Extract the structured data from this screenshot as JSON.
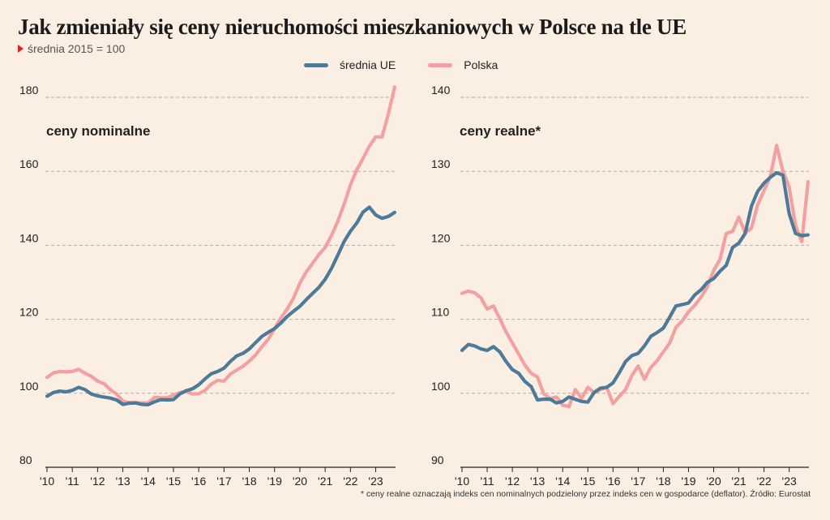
{
  "title": "Jak zmieniały się ceny nieruchomości mieszkaniowych w Polsce na tle UE",
  "subtitle": "średnia 2015 = 100",
  "legend": [
    {
      "label": "średnia UE",
      "color": "#4d7a99"
    },
    {
      "label": "Polska",
      "color": "#f4a0a0"
    }
  ],
  "footnote": "* ceny realne oznaczają indeks cen nominalnych podzielony przez indeks cen w gospodarce (deflator). Źródło: Eurostat",
  "chart_data": [
    {
      "type": "line",
      "panel_title": "ceny nominalne",
      "x_tick_labels": [
        "'10",
        "'11",
        "'12",
        "'13",
        "'14",
        "'15",
        "'16",
        "'17",
        "'18",
        "'19",
        "'20",
        "'21",
        "'22",
        "'23"
      ],
      "ylim": [
        80,
        185
      ],
      "y_ticks": [
        80,
        100,
        120,
        140,
        160,
        180
      ],
      "grid": true,
      "x_quarters": [
        "2010Q1",
        "2010Q2",
        "2010Q3",
        "2010Q4",
        "2011Q1",
        "2011Q2",
        "2011Q3",
        "2011Q4",
        "2012Q1",
        "2012Q2",
        "2012Q3",
        "2012Q4",
        "2013Q1",
        "2013Q2",
        "2013Q3",
        "2013Q4",
        "2014Q1",
        "2014Q2",
        "2014Q3",
        "2014Q4",
        "2015Q1",
        "2015Q2",
        "2015Q3",
        "2015Q4",
        "2016Q1",
        "2016Q2",
        "2016Q3",
        "2016Q4",
        "2017Q1",
        "2017Q2",
        "2017Q3",
        "2017Q4",
        "2018Q1",
        "2018Q2",
        "2018Q3",
        "2018Q4",
        "2019Q1",
        "2019Q2",
        "2019Q3",
        "2019Q4",
        "2020Q1",
        "2020Q2",
        "2020Q3",
        "2020Q4",
        "2021Q1",
        "2021Q2",
        "2021Q3",
        "2021Q4",
        "2022Q1",
        "2022Q2",
        "2022Q3",
        "2022Q4",
        "2023Q1",
        "2023Q2",
        "2023Q3",
        "2023Q4"
      ],
      "series": [
        {
          "name": "średnia UE",
          "color": "#4d7a99",
          "values": [
            99.2,
            100.2,
            100.6,
            100.4,
            100.8,
            101.6,
            101.0,
            99.8,
            99.3,
            99.0,
            98.7,
            98.2,
            97.0,
            97.3,
            97.4,
            97.0,
            96.9,
            97.7,
            98.3,
            98.2,
            98.3,
            99.8,
            100.7,
            101.2,
            102.3,
            103.9,
            105.3,
            105.9,
            106.8,
            108.6,
            110.1,
            110.8,
            112.0,
            113.7,
            115.4,
            116.5,
            117.5,
            119.0,
            120.8,
            122.2,
            123.5,
            125.3,
            127.0,
            128.6,
            130.8,
            133.7,
            137.3,
            141.0,
            143.8,
            146.0,
            149.0,
            150.3,
            148.2,
            147.3,
            147.8,
            148.9
          ]
        },
        {
          "name": "Polska",
          "color": "#f4a0a0",
          "values": [
            104.3,
            105.5,
            105.9,
            105.8,
            105.9,
            106.5,
            105.4,
            104.6,
            103.3,
            102.6,
            101.0,
            99.8,
            97.9,
            97.5,
            97.5,
            97.4,
            97.4,
            98.9,
            98.8,
            98.8,
            99.5,
            100.2,
            100.5,
            99.8,
            99.9,
            100.8,
            102.5,
            103.5,
            103.3,
            105.2,
            106.3,
            107.3,
            108.7,
            110.4,
            112.6,
            114.6,
            117.5,
            120.4,
            122.8,
            125.8,
            129.8,
            132.8,
            135.1,
            137.5,
            139.4,
            142.6,
            146.5,
            151.1,
            156.3,
            160.4,
            163.5,
            166.8,
            169.3,
            169.3,
            175.5,
            182.8
          ]
        }
      ]
    },
    {
      "type": "line",
      "panel_title": "ceny realne*",
      "x_tick_labels": [
        "'10",
        "'11",
        "'12",
        "'13",
        "'14",
        "'15",
        "'16",
        "'17",
        "'18",
        "'19",
        "'20",
        "'21",
        "'22",
        "'23"
      ],
      "ylim": [
        90,
        141
      ],
      "y_ticks": [
        90,
        100,
        110,
        120,
        130,
        140
      ],
      "grid": true,
      "x_quarters": [
        "2010Q1",
        "2010Q2",
        "2010Q3",
        "2010Q4",
        "2011Q1",
        "2011Q2",
        "2011Q3",
        "2011Q4",
        "2012Q1",
        "2012Q2",
        "2012Q3",
        "2012Q4",
        "2013Q1",
        "2013Q2",
        "2013Q3",
        "2013Q4",
        "2014Q1",
        "2014Q2",
        "2014Q3",
        "2014Q4",
        "2015Q1",
        "2015Q2",
        "2015Q3",
        "2015Q4",
        "2016Q1",
        "2016Q2",
        "2016Q3",
        "2016Q4",
        "2017Q1",
        "2017Q2",
        "2017Q3",
        "2017Q4",
        "2018Q1",
        "2018Q2",
        "2018Q3",
        "2018Q4",
        "2019Q1",
        "2019Q2",
        "2019Q3",
        "2019Q4",
        "2020Q1",
        "2020Q2",
        "2020Q3",
        "2020Q4",
        "2021Q1",
        "2021Q2",
        "2021Q3",
        "2021Q4",
        "2022Q1",
        "2022Q2",
        "2022Q3",
        "2022Q4",
        "2023Q1",
        "2023Q2",
        "2023Q3",
        "2023Q4"
      ],
      "series": [
        {
          "name": "średnia UE",
          "color": "#4d7a99",
          "values": [
            105.8,
            106.6,
            106.4,
            106.0,
            105.8,
            106.3,
            105.6,
            104.3,
            103.2,
            102.7,
            101.6,
            100.9,
            99.1,
            99.2,
            99.2,
            98.7,
            98.9,
            99.5,
            99.2,
            98.9,
            98.8,
            100.1,
            100.7,
            100.8,
            101.4,
            102.8,
            104.3,
            105.1,
            105.4,
            106.4,
            107.7,
            108.2,
            108.8,
            110.3,
            111.8,
            112.0,
            112.2,
            113.3,
            114.0,
            115.0,
            115.5,
            116.5,
            117.3,
            119.7,
            120.3,
            121.6,
            125.3,
            127.3,
            128.4,
            129.2,
            129.8,
            129.5,
            124.3,
            121.6,
            121.3,
            121.4
          ]
        },
        {
          "name": "Polska",
          "color": "#f4a0a0",
          "values": [
            113.5,
            113.8,
            113.6,
            112.9,
            111.4,
            111.8,
            110.1,
            108.3,
            106.8,
            105.3,
            103.8,
            102.7,
            102.2,
            99.9,
            99.3,
            99.5,
            98.4,
            98.2,
            100.5,
            99.3,
            100.8,
            100.1,
            100.5,
            100.8,
            98.6,
            99.6,
            100.5,
            102.4,
            103.7,
            101.9,
            103.5,
            104.4,
            105.6,
            106.8,
            108.9,
            109.8,
            111.0,
            111.9,
            113.0,
            114.4,
            116.6,
            118.1,
            121.6,
            121.9,
            123.8,
            121.7,
            122.3,
            125.5,
            127.4,
            129.3,
            133.5,
            130.0,
            127.9,
            122.7,
            120.5,
            128.6
          ]
        }
      ]
    }
  ]
}
